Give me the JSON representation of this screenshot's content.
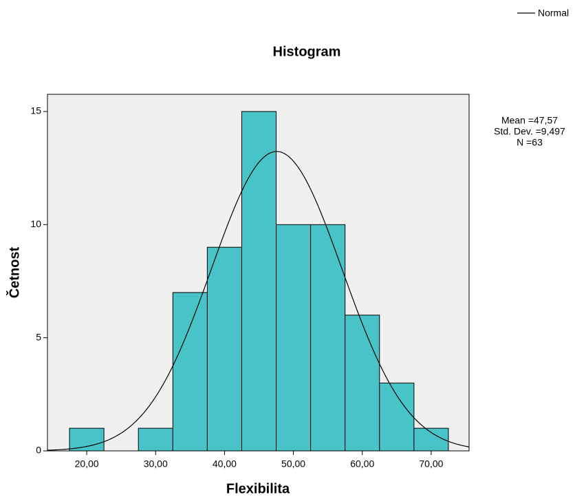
{
  "chart_data": {
    "type": "histogram",
    "title": "Histogram",
    "x_label": "Flexibilita",
    "y_label": "Četnost",
    "bins": [
      17.5,
      22.5,
      27.5,
      32.5,
      37.5,
      42.5,
      47.5,
      52.5,
      57.5,
      62.5,
      67.5,
      72.5
    ],
    "values": [
      1,
      0,
      1,
      7,
      9,
      15,
      10,
      10,
      6,
      3,
      1
    ],
    "color": "#48c4c8",
    "background": "#f0f0f0",
    "xlim": [
      14.3,
      75.5
    ],
    "xticks": [
      {
        "value": 20,
        "label": "20,00"
      },
      {
        "value": 30,
        "label": "30,00"
      },
      {
        "value": 40,
        "label": "40,00"
      },
      {
        "value": 50,
        "label": "50,00"
      },
      {
        "value": 60,
        "label": "60,00"
      },
      {
        "value": 70,
        "label": "70,00"
      }
    ],
    "ylim": [
      0,
      15.76
    ],
    "yticks": [
      0,
      5,
      10,
      15
    ],
    "normal_curve": {
      "name": "Normal",
      "color": "#000000",
      "mean": {
        "value": 47.57,
        "label": "Mean =47,57"
      },
      "std_dev": {
        "value": 9.497,
        "label": "Std. Dev. =9,497"
      },
      "n": {
        "value": 63,
        "label": "N =63"
      }
    }
  }
}
